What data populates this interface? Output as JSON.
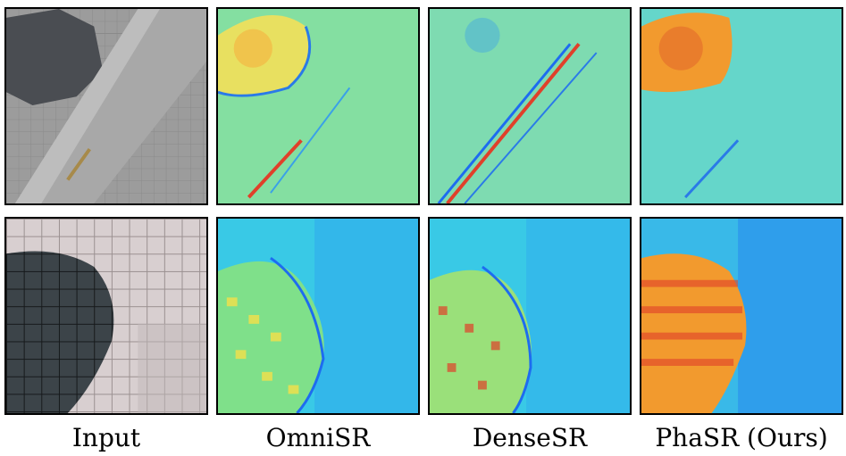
{
  "figure": {
    "columns": [
      {
        "label": "Input"
      },
      {
        "label": "OmniSR"
      },
      {
        "label": "DenseSR"
      },
      {
        "label": "PhaSR (Ours)"
      }
    ],
    "colors": {
      "jet_blue": "#1d6cf0",
      "jet_cyan": "#39c9e6",
      "jet_green": "#7fe08a",
      "jet_yellow": "#f5e04a",
      "jet_orange": "#f29a2e",
      "jet_red": "#e0402a"
    }
  }
}
